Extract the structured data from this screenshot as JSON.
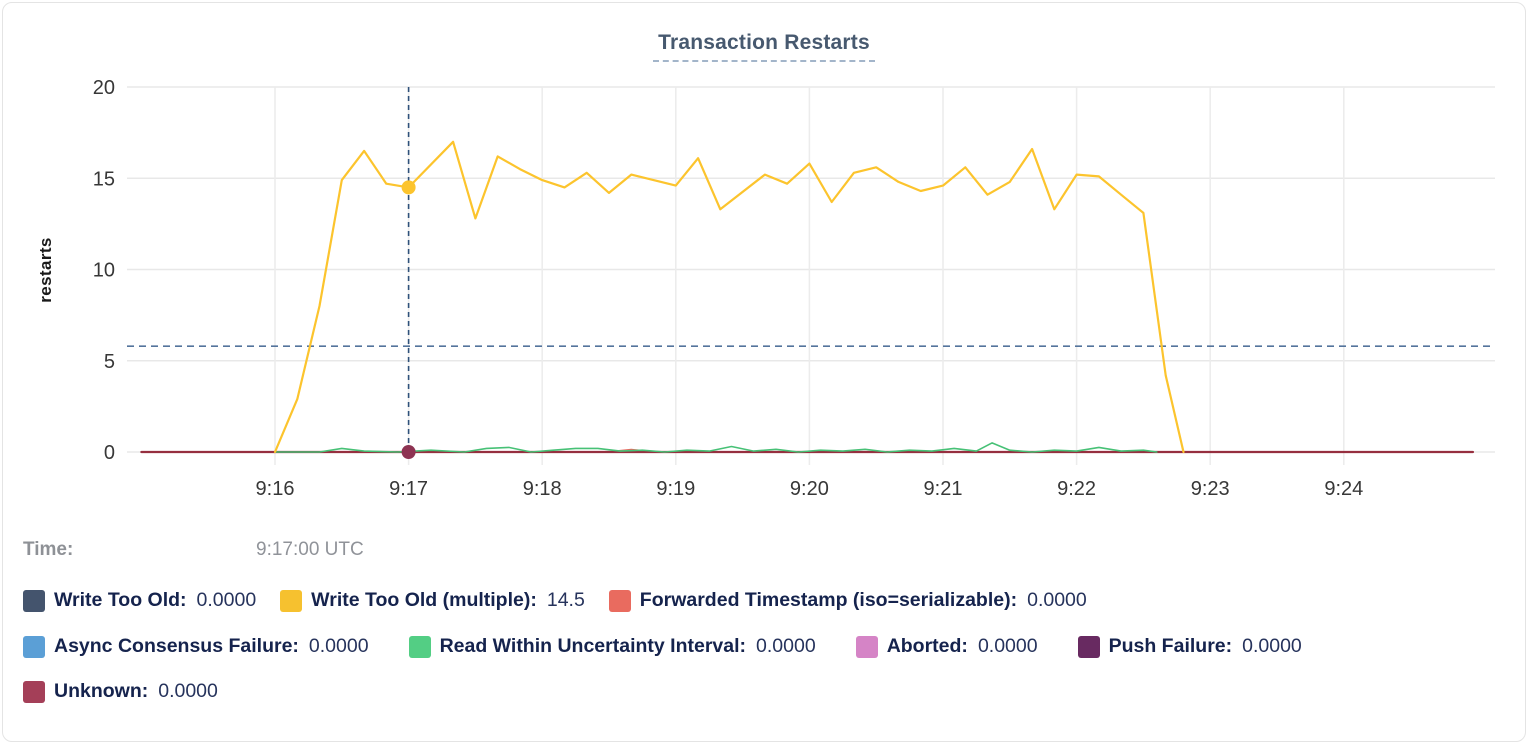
{
  "time_row": {
    "label": "Time:",
    "value": "9:17:00 UTC"
  },
  "legend": {
    "rows": [
      [
        {
          "label": "Write Too Old:",
          "value": "0.0000",
          "swatch_color": "#44546d"
        },
        {
          "label": "Write Too Old (multiple):",
          "value": "14.5",
          "swatch_color": "#f6c12f"
        },
        {
          "label": "Forwarded Timestamp (iso=serializable):",
          "value": "0.0000",
          "swatch_color": "#e96b5f"
        }
      ],
      [
        {
          "label": "Async Consensus Failure:",
          "value": "0.0000",
          "swatch_color": "#5b9fd6"
        },
        {
          "label": "Read Within Uncertainty Interval:",
          "value": "0.0000",
          "swatch_color": "#53ce84"
        },
        {
          "label": "Aborted:",
          "value": "0.0000",
          "swatch_color": "#d584c6"
        },
        {
          "label": "Push Failure:",
          "value": "0.0000",
          "swatch_color": "#682a61"
        }
      ],
      [
        {
          "label": "Unknown:",
          "value": "0.0000",
          "swatch_color": "#a43f58"
        }
      ]
    ]
  },
  "chart_data": {
    "type": "line",
    "title": "Transaction Restarts",
    "ylabel": "restarts",
    "ylim": [
      0,
      20
    ],
    "y_ticks": [
      0,
      5,
      10,
      15,
      20
    ],
    "x_tick_labels": [
      "9:16",
      "9:17",
      "9:18",
      "9:19",
      "9:20",
      "9:21",
      "9:22",
      "9:23",
      "9:24"
    ],
    "grid": true,
    "legend_position": "bottom",
    "threshold_line_value": 5.8,
    "crosshair": {
      "time_label": "9:17:00 UTC",
      "x_seconds": 60,
      "points": [
        {
          "value": 14.5,
          "color": "#fcc42d"
        },
        {
          "value": 0,
          "color": "#8d3352"
        }
      ]
    },
    "series": [
      {
        "name": "Write Too Old",
        "color": "#44546d",
        "width": 1.5,
        "x": [
          -60,
          538
        ],
        "values": [
          0,
          0
        ]
      },
      {
        "name": "Async Consensus Failure",
        "color": "#5b9fd6",
        "width": 1.5,
        "x": [
          -60,
          538
        ],
        "values": [
          0,
          0
        ]
      },
      {
        "name": "Aborted",
        "color": "#d584c6",
        "width": 1.5,
        "x": [
          -60,
          538
        ],
        "values": [
          0,
          0
        ]
      },
      {
        "name": "Push Failure",
        "color": "#682a61",
        "width": 1.5,
        "x": [
          -60,
          538
        ],
        "values": [
          0,
          0
        ]
      },
      {
        "name": "Forwarded Timestamp (iso=serializable)",
        "color": "#e8685f",
        "width": 2,
        "x": [
          -60,
          150,
          160,
          170,
          538
        ],
        "values": [
          0,
          0,
          0.12,
          0,
          0
        ]
      },
      {
        "name": "Unknown",
        "color": "#962f3f",
        "width": 2.2,
        "x": [
          -60,
          538
        ],
        "values": [
          0,
          0
        ]
      },
      {
        "name": "Read Within Uncertainty Interval",
        "color": "#47c176",
        "width": 1.6,
        "x": [
          0,
          20,
          30,
          40,
          55,
          70,
          85,
          95,
          105,
          115,
          125,
          135,
          145,
          155,
          165,
          175,
          185,
          195,
          205,
          215,
          225,
          235,
          245,
          255,
          265,
          275,
          285,
          295,
          305,
          315,
          322,
          330,
          340,
          350,
          360,
          370,
          380,
          390,
          396
        ],
        "values": [
          0,
          0,
          0.2,
          0.05,
          0,
          0.1,
          0,
          0.2,
          0.25,
          0,
          0.1,
          0.2,
          0.2,
          0.05,
          0.1,
          0,
          0.1,
          0.05,
          0.3,
          0.05,
          0.15,
          0,
          0.1,
          0.05,
          0.15,
          0,
          0.1,
          0.05,
          0.2,
          0.05,
          0.5,
          0.1,
          0,
          0.1,
          0.05,
          0.25,
          0.05,
          0.1,
          0
        ]
      },
      {
        "name": "Write Too Old (multiple)",
        "color": "#fcc42d",
        "width": 2.2,
        "x": [
          0,
          10,
          20,
          30,
          40,
          50,
          60,
          80,
          90,
          100,
          110,
          120,
          130,
          140,
          150,
          160,
          170,
          180,
          190,
          200,
          220,
          230,
          240,
          250,
          260,
          270,
          280,
          290,
          300,
          310,
          320,
          330,
          340,
          350,
          360,
          370,
          380,
          390,
          400,
          408
        ],
        "values": [
          0,
          2.9,
          8.0,
          14.9,
          16.5,
          14.7,
          14.5,
          17.0,
          12.8,
          16.2,
          15.5,
          14.9,
          14.5,
          15.3,
          14.2,
          15.2,
          14.9,
          14.6,
          16.1,
          13.3,
          15.2,
          14.7,
          15.8,
          13.7,
          15.3,
          15.6,
          14.8,
          14.3,
          14.6,
          15.6,
          14.1,
          14.8,
          16.6,
          13.3,
          15.2,
          15.1,
          14.1,
          13.1,
          4.2,
          0
        ]
      }
    ]
  }
}
